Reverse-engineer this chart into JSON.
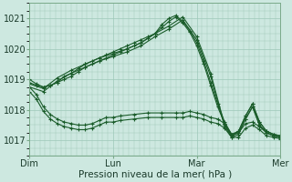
{
  "bg_color": "#cde8e0",
  "plot_bg_color": "#cde8e0",
  "grid_color": "#9dc8b8",
  "line_color": "#1a5c2a",
  "marker_color": "#1a5c2a",
  "ylim": [
    1016.5,
    1021.5
  ],
  "yticks": [
    1017,
    1018,
    1019,
    1020,
    1021
  ],
  "xlabel": "Pression niveau de la mer( hPa )",
  "xtick_labels": [
    "Dim",
    "Lun",
    "Mar",
    "Mer"
  ],
  "xtick_positions": [
    0,
    48,
    96,
    144
  ],
  "series": [
    {
      "x": [
        0,
        4,
        8,
        12,
        16,
        20,
        24,
        28,
        32,
        36,
        40,
        44,
        48,
        52,
        56,
        60,
        64,
        68,
        72,
        76,
        80,
        84,
        88,
        92,
        96,
        100,
        104,
        108,
        112,
        116,
        120,
        124,
        128,
        132,
        136,
        140,
        144
      ],
      "y": [
        1019.0,
        1018.85,
        1018.75,
        1018.8,
        1018.9,
        1019.1,
        1019.2,
        1019.35,
        1019.5,
        1019.6,
        1019.7,
        1019.8,
        1019.9,
        1020.0,
        1020.1,
        1020.2,
        1020.3,
        1020.4,
        1020.5,
        1020.8,
        1021.0,
        1021.1,
        1020.9,
        1020.6,
        1020.2,
        1019.6,
        1018.9,
        1018.2,
        1017.6,
        1017.2,
        1017.3,
        1017.8,
        1018.2,
        1017.6,
        1017.3,
        1017.2,
        1017.15
      ]
    },
    {
      "x": [
        0,
        4,
        8,
        12,
        16,
        20,
        24,
        28,
        32,
        36,
        40,
        44,
        48,
        52,
        56,
        60,
        64,
        68,
        72,
        76,
        80,
        84,
        88,
        92,
        96,
        100,
        104,
        108,
        112,
        116,
        120,
        124,
        128,
        132,
        136,
        140,
        144
      ],
      "y": [
        1018.9,
        1018.8,
        1018.75,
        1018.8,
        1018.9,
        1019.0,
        1019.1,
        1019.25,
        1019.4,
        1019.5,
        1019.6,
        1019.7,
        1019.8,
        1019.9,
        1020.0,
        1020.1,
        1020.2,
        1020.35,
        1020.5,
        1020.7,
        1020.9,
        1021.05,
        1020.85,
        1020.55,
        1020.1,
        1019.5,
        1018.8,
        1018.1,
        1017.55,
        1017.15,
        1017.25,
        1017.7,
        1018.1,
        1017.5,
        1017.25,
        1017.15,
        1017.1
      ]
    },
    {
      "x": [
        0,
        8,
        16,
        24,
        32,
        40,
        48,
        56,
        64,
        72,
        80,
        88,
        96,
        104,
        112,
        116,
        120,
        124,
        128,
        132,
        136,
        140,
        144
      ],
      "y": [
        1018.85,
        1018.7,
        1019.05,
        1019.3,
        1019.5,
        1019.7,
        1019.85,
        1020.0,
        1020.2,
        1020.5,
        1020.75,
        1021.05,
        1020.4,
        1019.2,
        1017.5,
        1017.15,
        1017.3,
        1017.8,
        1018.2,
        1017.6,
        1017.3,
        1017.2,
        1017.15
      ]
    },
    {
      "x": [
        0,
        8,
        16,
        24,
        32,
        40,
        48,
        56,
        64,
        72,
        80,
        88,
        96,
        104,
        112,
        116,
        120,
        124,
        128,
        132,
        136,
        140,
        144
      ],
      "y": [
        1018.75,
        1018.6,
        1018.95,
        1019.2,
        1019.4,
        1019.6,
        1019.75,
        1019.9,
        1020.1,
        1020.4,
        1020.65,
        1020.95,
        1020.3,
        1019.1,
        1017.45,
        1017.1,
        1017.2,
        1017.7,
        1018.1,
        1017.5,
        1017.25,
        1017.15,
        1017.1
      ]
    },
    {
      "x": [
        0,
        4,
        8,
        12,
        16,
        20,
        24,
        28,
        32,
        36,
        40,
        44,
        48,
        52,
        60,
        68,
        76,
        84,
        88,
        92,
        96,
        100,
        104,
        108,
        112,
        116,
        120,
        124,
        128,
        132,
        136,
        140,
        144
      ],
      "y": [
        1018.75,
        1018.5,
        1018.1,
        1017.85,
        1017.7,
        1017.6,
        1017.55,
        1017.5,
        1017.5,
        1017.55,
        1017.65,
        1017.75,
        1017.75,
        1017.8,
        1017.85,
        1017.9,
        1017.9,
        1017.9,
        1017.9,
        1017.95,
        1017.9,
        1017.85,
        1017.75,
        1017.7,
        1017.55,
        1017.2,
        1017.25,
        1017.55,
        1017.6,
        1017.45,
        1017.25,
        1017.15,
        1017.1
      ]
    },
    {
      "x": [
        0,
        4,
        8,
        12,
        16,
        20,
        24,
        28,
        32,
        36,
        40,
        44,
        48,
        52,
        60,
        68,
        76,
        84,
        88,
        92,
        96,
        100,
        104,
        108,
        112,
        116,
        120,
        124,
        128,
        132,
        136,
        140,
        144
      ],
      "y": [
        1018.6,
        1018.35,
        1017.95,
        1017.7,
        1017.55,
        1017.45,
        1017.4,
        1017.35,
        1017.35,
        1017.4,
        1017.5,
        1017.6,
        1017.6,
        1017.65,
        1017.7,
        1017.75,
        1017.75,
        1017.75,
        1017.75,
        1017.8,
        1017.75,
        1017.7,
        1017.6,
        1017.55,
        1017.4,
        1017.1,
        1017.1,
        1017.4,
        1017.5,
        1017.35,
        1017.15,
        1017.1,
        1017.05
      ]
    }
  ]
}
